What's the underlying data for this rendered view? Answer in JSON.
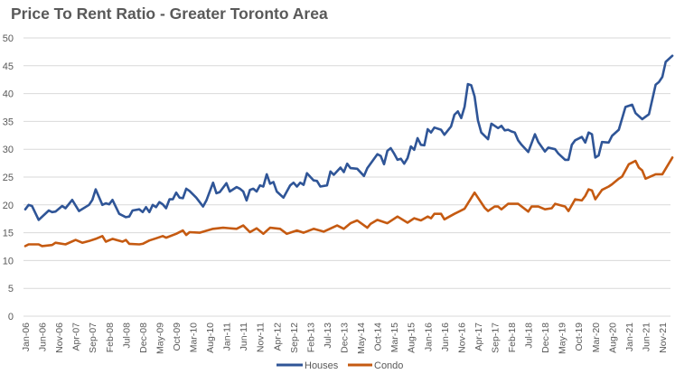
{
  "chart_data": {
    "type": "line",
    "title": "Price To Rent Ratio - Greater Toronto Area",
    "xlabel": "",
    "ylabel": "",
    "ylim": [
      0,
      50
    ],
    "yticks": [
      0,
      5,
      10,
      15,
      20,
      25,
      30,
      35,
      40,
      45,
      50
    ],
    "grid": true,
    "legend": "bottom",
    "x_start": "2006-01",
    "x_tick_step_months": 5,
    "xtick_labels": [
      "Jan-06",
      "Jun-06",
      "Nov-06",
      "Apr-07",
      "Sep-07",
      "Feb-08",
      "Jul-08",
      "Dec-08",
      "May-09",
      "Oct-09",
      "Mar-10",
      "Aug-10",
      "Jan-11",
      "Jun-11",
      "Nov-11",
      "Apr-12",
      "Sep-12",
      "Feb-13",
      "Jul-13",
      "Dec-13",
      "May-14",
      "Oct-14",
      "Mar-15",
      "Aug-15",
      "Jan-16",
      "Jun-16",
      "Nov-16",
      "Apr-17",
      "Sep-17",
      "Feb-18",
      "Jul-18",
      "Dec-18",
      "May-19",
      "Oct-19",
      "Mar-20",
      "Aug-20",
      "Jan-21",
      "Jun-21",
      "Nov-21"
    ],
    "series": [
      {
        "name": "Houses",
        "color": "#2F5597",
        "points": [
          [
            "2006-01",
            19.2
          ],
          [
            "2006-02",
            20.0
          ],
          [
            "2006-03",
            19.8
          ],
          [
            "2006-05",
            17.3
          ],
          [
            "2006-08",
            19.0
          ],
          [
            "2006-09",
            18.7
          ],
          [
            "2006-10",
            18.8
          ],
          [
            "2006-12",
            19.8
          ],
          [
            "2007-01",
            19.4
          ],
          [
            "2007-03",
            20.9
          ],
          [
            "2007-05",
            18.9
          ],
          [
            "2007-08",
            20.0
          ],
          [
            "2007-09",
            20.9
          ],
          [
            "2007-10",
            22.8
          ],
          [
            "2007-12",
            20.0
          ],
          [
            "2008-01",
            20.3
          ],
          [
            "2008-02",
            20.1
          ],
          [
            "2008-03",
            20.9
          ],
          [
            "2008-05",
            18.4
          ],
          [
            "2008-07",
            17.8
          ],
          [
            "2008-08",
            17.9
          ],
          [
            "2008-09",
            19.0
          ],
          [
            "2008-11",
            19.2
          ],
          [
            "2008-12",
            18.7
          ],
          [
            "2009-01",
            19.6
          ],
          [
            "2009-02",
            18.7
          ],
          [
            "2009-03",
            20.0
          ],
          [
            "2009-04",
            19.6
          ],
          [
            "2009-05",
            20.5
          ],
          [
            "2009-06",
            20.1
          ],
          [
            "2009-07",
            19.4
          ],
          [
            "2009-08",
            21.0
          ],
          [
            "2009-09",
            21.0
          ],
          [
            "2009-10",
            22.2
          ],
          [
            "2009-11",
            21.3
          ],
          [
            "2009-12",
            21.2
          ],
          [
            "2010-01",
            22.9
          ],
          [
            "2010-02",
            22.5
          ],
          [
            "2010-04",
            21.3
          ],
          [
            "2010-06",
            19.7
          ],
          [
            "2010-07",
            20.8
          ],
          [
            "2010-09",
            24.0
          ],
          [
            "2010-10",
            22.1
          ],
          [
            "2010-11",
            22.3
          ],
          [
            "2011-01",
            23.9
          ],
          [
            "2011-02",
            22.4
          ],
          [
            "2011-04",
            23.2
          ],
          [
            "2011-05",
            22.9
          ],
          [
            "2011-06",
            22.4
          ],
          [
            "2011-07",
            20.8
          ],
          [
            "2011-08",
            22.7
          ],
          [
            "2011-09",
            22.9
          ],
          [
            "2011-10",
            22.4
          ],
          [
            "2011-11",
            23.5
          ],
          [
            "2011-12",
            23.3
          ],
          [
            "2012-01",
            25.5
          ],
          [
            "2012-02",
            23.8
          ],
          [
            "2012-03",
            24.1
          ],
          [
            "2012-04",
            22.4
          ],
          [
            "2012-06",
            21.3
          ],
          [
            "2012-08",
            23.5
          ],
          [
            "2012-09",
            24.0
          ],
          [
            "2012-10",
            23.3
          ],
          [
            "2012-11",
            24.0
          ],
          [
            "2012-12",
            23.6
          ],
          [
            "2013-01",
            25.7
          ],
          [
            "2013-03",
            24.4
          ],
          [
            "2013-04",
            24.3
          ],
          [
            "2013-05",
            23.3
          ],
          [
            "2013-07",
            23.5
          ],
          [
            "2013-08",
            26.0
          ],
          [
            "2013-09",
            25.4
          ],
          [
            "2013-11",
            26.7
          ],
          [
            "2013-12",
            25.9
          ],
          [
            "2014-01",
            27.4
          ],
          [
            "2014-02",
            26.6
          ],
          [
            "2014-04",
            26.5
          ],
          [
            "2014-06",
            25.2
          ],
          [
            "2014-07",
            26.6
          ],
          [
            "2014-10",
            29.1
          ],
          [
            "2014-11",
            28.8
          ],
          [
            "2014-12",
            27.3
          ],
          [
            "2015-01",
            29.7
          ],
          [
            "2015-02",
            30.2
          ],
          [
            "2015-03",
            29.2
          ],
          [
            "2015-04",
            28.1
          ],
          [
            "2015-05",
            28.3
          ],
          [
            "2015-06",
            27.4
          ],
          [
            "2015-07",
            28.4
          ],
          [
            "2015-08",
            30.5
          ],
          [
            "2015-09",
            29.9
          ],
          [
            "2015-10",
            32.0
          ],
          [
            "2015-11",
            30.8
          ],
          [
            "2015-12",
            30.7
          ],
          [
            "2016-01",
            33.6
          ],
          [
            "2016-02",
            33.0
          ],
          [
            "2016-03",
            33.9
          ],
          [
            "2016-05",
            33.5
          ],
          [
            "2016-06",
            32.6
          ],
          [
            "2016-08",
            34.1
          ],
          [
            "2016-09",
            36.2
          ],
          [
            "2016-10",
            36.8
          ],
          [
            "2016-11",
            35.6
          ],
          [
            "2016-12",
            37.6
          ],
          [
            "2017-01",
            41.7
          ],
          [
            "2017-02",
            41.5
          ],
          [
            "2017-03",
            39.5
          ],
          [
            "2017-04",
            35.2
          ],
          [
            "2017-05",
            33.0
          ],
          [
            "2017-07",
            31.8
          ],
          [
            "2017-08",
            34.6
          ],
          [
            "2017-09",
            34.2
          ],
          [
            "2017-10",
            33.8
          ],
          [
            "2017-11",
            34.2
          ],
          [
            "2017-12",
            33.4
          ],
          [
            "2018-01",
            33.5
          ],
          [
            "2018-02",
            33.2
          ],
          [
            "2018-03",
            33.0
          ],
          [
            "2018-04",
            31.6
          ],
          [
            "2018-05",
            30.8
          ],
          [
            "2018-07",
            29.5
          ],
          [
            "2018-09",
            32.7
          ],
          [
            "2018-10",
            31.3
          ],
          [
            "2018-12",
            29.6
          ],
          [
            "2019-01",
            30.3
          ],
          [
            "2019-03",
            30.0
          ],
          [
            "2019-04",
            29.2
          ],
          [
            "2019-06",
            28.1
          ],
          [
            "2019-07",
            28.1
          ],
          [
            "2019-08",
            30.8
          ],
          [
            "2019-09",
            31.6
          ],
          [
            "2019-11",
            32.2
          ],
          [
            "2019-12",
            31.2
          ],
          [
            "2020-01",
            33.0
          ],
          [
            "2020-02",
            32.7
          ],
          [
            "2020-03",
            28.5
          ],
          [
            "2020-04",
            28.9
          ],
          [
            "2020-05",
            31.3
          ],
          [
            "2020-07",
            31.2
          ],
          [
            "2020-08",
            32.4
          ],
          [
            "2020-10",
            33.5
          ],
          [
            "2020-12",
            37.6
          ],
          [
            "2021-02",
            38.0
          ],
          [
            "2021-03",
            36.5
          ],
          [
            "2021-05",
            35.4
          ],
          [
            "2021-07",
            36.3
          ],
          [
            "2021-09",
            41.6
          ],
          [
            "2021-10",
            42.1
          ],
          [
            "2021-11",
            43.0
          ],
          [
            "2021-12",
            45.7
          ],
          [
            "2022-02",
            46.8
          ]
        ]
      },
      {
        "name": "Condo",
        "color": "#C55A11",
        "points": [
          [
            "2006-01",
            12.6
          ],
          [
            "2006-02",
            12.9
          ],
          [
            "2006-05",
            12.9
          ],
          [
            "2006-06",
            12.6
          ],
          [
            "2006-09",
            12.8
          ],
          [
            "2006-10",
            13.2
          ],
          [
            "2007-01",
            12.9
          ],
          [
            "2007-04",
            13.7
          ],
          [
            "2007-06",
            13.2
          ],
          [
            "2007-08",
            13.5
          ],
          [
            "2007-10",
            13.9
          ],
          [
            "2007-12",
            14.4
          ],
          [
            "2008-01",
            13.4
          ],
          [
            "2008-03",
            13.9
          ],
          [
            "2008-06",
            13.4
          ],
          [
            "2008-07",
            13.7
          ],
          [
            "2008-08",
            13.0
          ],
          [
            "2008-11",
            12.9
          ],
          [
            "2008-12",
            13.0
          ],
          [
            "2009-02",
            13.6
          ],
          [
            "2009-04",
            14.0
          ],
          [
            "2009-06",
            14.4
          ],
          [
            "2009-07",
            14.1
          ],
          [
            "2009-10",
            14.8
          ],
          [
            "2009-12",
            15.4
          ],
          [
            "2010-01",
            14.6
          ],
          [
            "2010-02",
            15.1
          ],
          [
            "2010-05",
            15.0
          ],
          [
            "2010-09",
            15.7
          ],
          [
            "2010-12",
            15.9
          ],
          [
            "2011-04",
            15.7
          ],
          [
            "2011-06",
            16.3
          ],
          [
            "2011-08",
            15.1
          ],
          [
            "2011-10",
            15.8
          ],
          [
            "2011-12",
            14.8
          ],
          [
            "2012-02",
            15.9
          ],
          [
            "2012-05",
            15.7
          ],
          [
            "2012-07",
            14.8
          ],
          [
            "2012-10",
            15.4
          ],
          [
            "2012-12",
            15.0
          ],
          [
            "2013-03",
            15.7
          ],
          [
            "2013-06",
            15.2
          ],
          [
            "2013-10",
            16.3
          ],
          [
            "2013-12",
            15.7
          ],
          [
            "2014-02",
            16.7
          ],
          [
            "2014-04",
            17.2
          ],
          [
            "2014-07",
            15.9
          ],
          [
            "2014-08",
            16.6
          ],
          [
            "2014-10",
            17.3
          ],
          [
            "2015-01",
            16.7
          ],
          [
            "2015-04",
            17.9
          ],
          [
            "2015-07",
            16.8
          ],
          [
            "2015-09",
            17.6
          ],
          [
            "2015-11",
            17.2
          ],
          [
            "2016-01",
            17.9
          ],
          [
            "2016-02",
            17.6
          ],
          [
            "2016-03",
            18.4
          ],
          [
            "2016-05",
            18.4
          ],
          [
            "2016-06",
            17.4
          ],
          [
            "2016-09",
            18.4
          ],
          [
            "2016-12",
            19.3
          ],
          [
            "2017-03",
            22.2
          ],
          [
            "2017-06",
            19.5
          ],
          [
            "2017-07",
            18.9
          ],
          [
            "2017-09",
            19.7
          ],
          [
            "2017-10",
            19.7
          ],
          [
            "2017-11",
            19.2
          ],
          [
            "2018-01",
            20.2
          ],
          [
            "2018-04",
            20.2
          ],
          [
            "2018-07",
            18.8
          ],
          [
            "2018-08",
            19.7
          ],
          [
            "2018-10",
            19.7
          ],
          [
            "2018-12",
            19.2
          ],
          [
            "2019-02",
            19.4
          ],
          [
            "2019-03",
            20.2
          ],
          [
            "2019-06",
            19.7
          ],
          [
            "2019-07",
            18.9
          ],
          [
            "2019-09",
            21.0
          ],
          [
            "2019-11",
            20.8
          ],
          [
            "2019-12",
            21.6
          ],
          [
            "2020-01",
            22.8
          ],
          [
            "2020-02",
            22.6
          ],
          [
            "2020-03",
            21.0
          ],
          [
            "2020-05",
            22.7
          ],
          [
            "2020-07",
            23.3
          ],
          [
            "2020-08",
            23.7
          ],
          [
            "2020-10",
            24.7
          ],
          [
            "2020-11",
            25.1
          ],
          [
            "2021-01",
            27.3
          ],
          [
            "2021-03",
            27.9
          ],
          [
            "2021-04",
            26.7
          ],
          [
            "2021-05",
            26.2
          ],
          [
            "2021-06",
            24.7
          ],
          [
            "2021-09",
            25.5
          ],
          [
            "2021-11",
            25.5
          ],
          [
            "2022-02",
            28.5
          ]
        ]
      }
    ]
  }
}
